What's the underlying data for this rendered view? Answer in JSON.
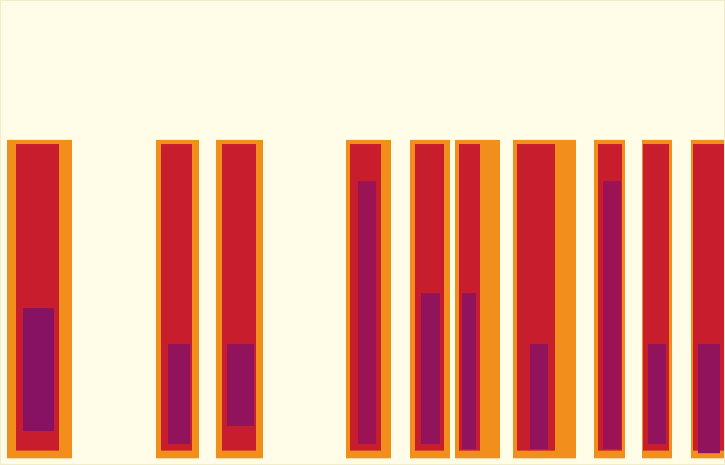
{
  "chart_data": {
    "type": "heatmap",
    "tick_labels": false,
    "xlim": [
      0,
      8
    ],
    "ylim": [
      0,
      10
    ],
    "zlim": [
      0,
      1
    ],
    "cells": [
      {
        "x0": 0.08,
        "x1": 0.8,
        "y0": 0.15,
        "y1": 7.0,
        "z": 0.42
      },
      {
        "x0": 0.18,
        "x1": 0.65,
        "y0": 0.3,
        "y1": 6.9,
        "z": 0.68
      },
      {
        "x0": 0.25,
        "x1": 0.6,
        "y0": 0.74,
        "y1": 3.37,
        "z": 0.88
      },
      {
        "x0": 1.72,
        "x1": 2.2,
        "y0": 0.15,
        "y1": 7.0,
        "z": 0.42
      },
      {
        "x0": 1.78,
        "x1": 2.12,
        "y0": 0.3,
        "y1": 6.9,
        "z": 0.68
      },
      {
        "x0": 1.85,
        "x1": 2.1,
        "y0": 0.45,
        "y1": 2.59,
        "z": 0.86
      },
      {
        "x0": 2.38,
        "x1": 2.9,
        "y0": 0.15,
        "y1": 7.0,
        "z": 0.42
      },
      {
        "x0": 2.45,
        "x1": 2.82,
        "y0": 0.3,
        "y1": 6.9,
        "z": 0.68
      },
      {
        "x0": 2.5,
        "x1": 2.8,
        "y0": 0.84,
        "y1": 2.59,
        "z": 0.86
      },
      {
        "x0": 3.82,
        "x1": 4.32,
        "y0": 0.15,
        "y1": 7.0,
        "z": 0.42
      },
      {
        "x0": 3.86,
        "x1": 4.2,
        "y0": 0.3,
        "y1": 6.9,
        "z": 0.68
      },
      {
        "x0": 3.95,
        "x1": 4.15,
        "y0": 0.45,
        "y1": 6.1,
        "z": 0.84
      },
      {
        "x0": 4.52,
        "x1": 4.97,
        "y0": 0.15,
        "y1": 7.0,
        "z": 0.42
      },
      {
        "x0": 4.58,
        "x1": 4.9,
        "y0": 0.3,
        "y1": 6.9,
        "z": 0.68
      },
      {
        "x0": 4.65,
        "x1": 4.85,
        "y0": 0.45,
        "y1": 3.7,
        "z": 0.86
      },
      {
        "x0": 5.02,
        "x1": 5.52,
        "y0": 0.15,
        "y1": 7.0,
        "z": 0.42
      },
      {
        "x0": 5.07,
        "x1": 5.3,
        "y0": 0.3,
        "y1": 6.9,
        "z": 0.68
      },
      {
        "x0": 5.1,
        "x1": 5.25,
        "y0": 0.35,
        "y1": 3.7,
        "z": 0.86
      },
      {
        "x0": 5.66,
        "x1": 6.36,
        "y0": 0.15,
        "y1": 7.0,
        "z": 0.42
      },
      {
        "x0": 5.7,
        "x1": 6.12,
        "y0": 0.3,
        "y1": 6.9,
        "z": 0.68
      },
      {
        "x0": 5.85,
        "x1": 6.05,
        "y0": 0.35,
        "y1": 2.59,
        "z": 0.86
      },
      {
        "x0": 6.56,
        "x1": 6.9,
        "y0": 0.15,
        "y1": 7.0,
        "z": 0.42
      },
      {
        "x0": 6.6,
        "x1": 6.86,
        "y0": 0.3,
        "y1": 6.9,
        "z": 0.68
      },
      {
        "x0": 6.65,
        "x1": 6.85,
        "y0": 0.35,
        "y1": 6.1,
        "z": 0.84
      },
      {
        "x0": 7.08,
        "x1": 7.42,
        "y0": 0.15,
        "y1": 7.0,
        "z": 0.42
      },
      {
        "x0": 7.1,
        "x1": 7.38,
        "y0": 0.3,
        "y1": 6.9,
        "z": 0.68
      },
      {
        "x0": 7.15,
        "x1": 7.35,
        "y0": 0.45,
        "y1": 2.59,
        "z": 0.86
      },
      {
        "x0": 7.62,
        "x1": 8.0,
        "y0": 0.15,
        "y1": 7.0,
        "z": 0.42
      },
      {
        "x0": 7.65,
        "x1": 8.0,
        "y0": 0.3,
        "y1": 6.9,
        "z": 0.68
      },
      {
        "x0": 7.7,
        "x1": 7.95,
        "y0": 0.25,
        "y1": 2.59,
        "z": 0.86
      }
    ]
  }
}
